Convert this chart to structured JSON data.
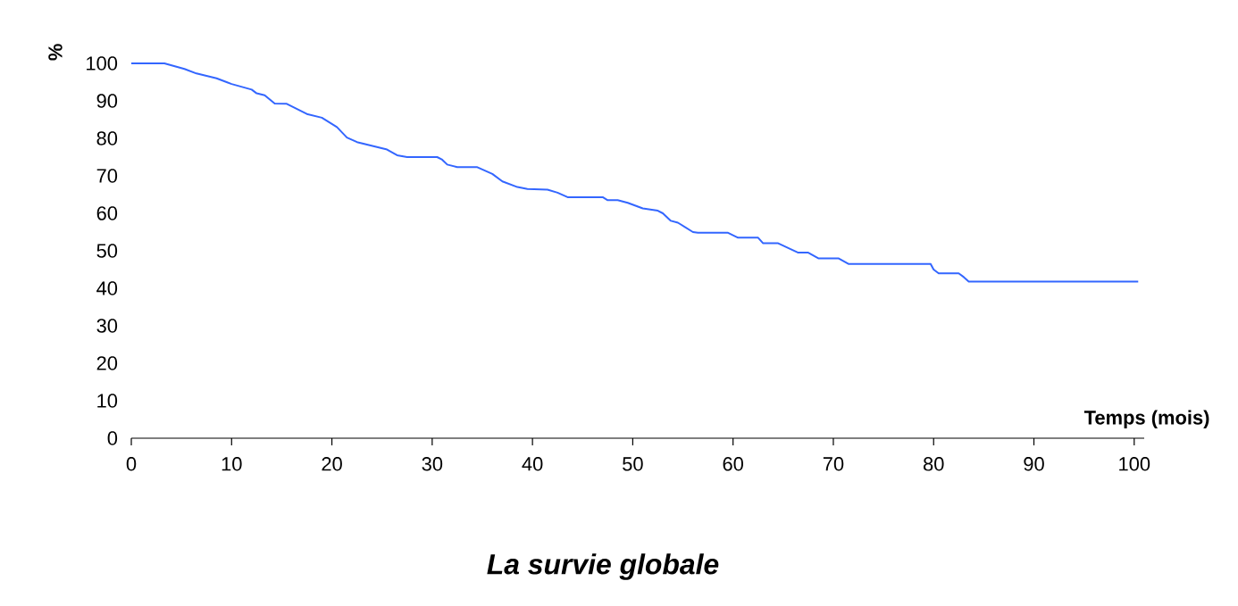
{
  "chart_data": {
    "type": "line",
    "title": "La survie globale",
    "xlabel": "Temps (mois)",
    "ylabel": "%",
    "xlim": [
      0,
      101
    ],
    "ylim": [
      0,
      100
    ],
    "xticks": [
      0,
      10,
      20,
      30,
      40,
      50,
      60,
      70,
      80,
      90,
      100
    ],
    "yticks": [
      0,
      10,
      20,
      30,
      40,
      50,
      60,
      70,
      80,
      90,
      100
    ],
    "x": [
      0,
      3.3,
      5.3,
      6.5,
      8.5,
      10,
      12,
      12.5,
      13.3,
      14.3,
      15.5,
      17.5,
      19,
      20.5,
      21.5,
      22.5,
      25.5,
      26.5,
      27.5,
      30.5,
      31,
      31.5,
      32.5,
      34.5,
      36,
      37,
      38.5,
      39.5,
      41.5,
      42.5,
      43.5,
      47,
      47.5,
      48.5,
      49.5,
      51,
      52.5,
      53,
      53.8,
      54.5,
      56,
      56.5,
      59.5,
      60.5,
      62.5,
      63,
      64.5,
      66.5,
      67.5,
      68.5,
      70.5,
      71.5,
      79.7,
      80,
      80.5,
      82.5,
      83,
      83.5,
      100.4
    ],
    "values": [
      100,
      100,
      98.5,
      97.3,
      96,
      94.5,
      93,
      92,
      91.5,
      89.3,
      89.2,
      86.5,
      85.5,
      83,
      80.2,
      79,
      77,
      75.5,
      75,
      75,
      74.3,
      73,
      72.3,
      72.3,
      70.5,
      68.5,
      67,
      66.5,
      66.3,
      65.5,
      64.3,
      64.3,
      63.5,
      63.5,
      62.8,
      61.3,
      60.7,
      60,
      58,
      57.5,
      55,
      54.8,
      54.8,
      53.5,
      53.5,
      52,
      52,
      49.5,
      49.5,
      48,
      48,
      46.5,
      46.5,
      45,
      44,
      44,
      43,
      41.8,
      41.8
    ],
    "color": "#3366ff"
  }
}
